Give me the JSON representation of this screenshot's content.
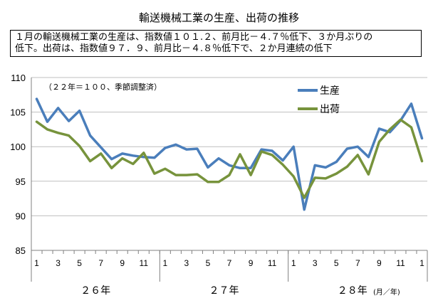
{
  "title": "輸送機械工業の生産、出荷の推移",
  "summary": {
    "line1": "１月の輸送機械工業の生産は、指数値１０１.２、前月比－４.７％低下、３か月ぶりの",
    "line2": "低下。出荷は、指数値９７．９、前月比－４.８％低下で、２か月連続の低下"
  },
  "chart_data": {
    "type": "line",
    "title": "輸送機械工業の生産、出荷の推移",
    "note": "（２２年＝１００、季節調整済）",
    "unit_label": "(月／年)",
    "ylim": [
      85,
      110
    ],
    "yticks": [
      85,
      90,
      95,
      100,
      105,
      110
    ],
    "x_month_labels": [
      "1",
      "",
      "3",
      "",
      "5",
      "",
      "7",
      "",
      "9",
      "",
      "11",
      "",
      "1",
      "",
      "3",
      "",
      "5",
      "",
      "7",
      "",
      "9",
      "",
      "11",
      "",
      "1",
      "",
      "3",
      "",
      "5",
      "",
      "7",
      "",
      "9",
      "",
      "11",
      "",
      "1"
    ],
    "years": [
      {
        "label": "２６年"
      },
      {
        "label": "２７年"
      },
      {
        "label": "２８年"
      }
    ],
    "series": [
      {
        "name": "生産",
        "color": "#4a7ebb",
        "values": [
          106.9,
          103.6,
          105.6,
          103.7,
          105.2,
          101.6,
          99.9,
          98.2,
          99.0,
          98.7,
          98.5,
          98.4,
          99.8,
          100.3,
          99.6,
          99.7,
          97.0,
          98.3,
          97.3,
          96.9,
          96.9,
          99.6,
          99.4,
          98.0,
          100.0,
          90.9,
          97.3,
          97.0,
          97.8,
          99.7,
          100.0,
          98.5,
          102.6,
          102.1,
          103.8,
          106.2,
          101.2
        ]
      },
      {
        "name": "出荷",
        "color": "#77933c",
        "values": [
          103.6,
          102.5,
          102.0,
          101.6,
          100.1,
          97.9,
          99.0,
          96.9,
          98.3,
          97.5,
          99.1,
          96.1,
          96.8,
          95.9,
          95.9,
          96.0,
          94.9,
          94.9,
          95.9,
          98.9,
          95.9,
          99.3,
          98.8,
          97.4,
          95.7,
          92.6,
          95.5,
          95.4,
          96.1,
          97.1,
          98.8,
          96.0,
          100.7,
          102.5,
          103.9,
          102.8,
          97.9
        ]
      }
    ]
  }
}
